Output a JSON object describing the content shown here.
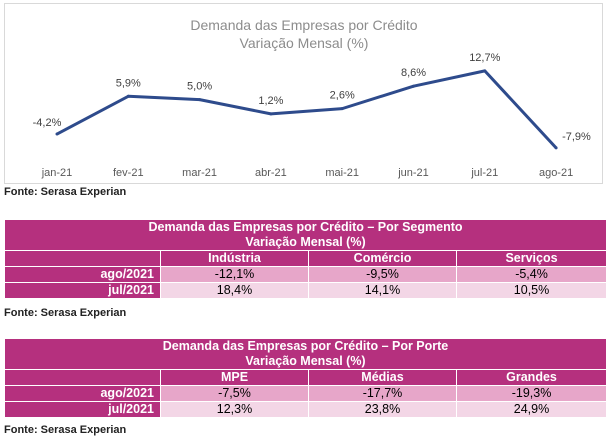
{
  "chart_data": {
    "type": "line",
    "title": "Demanda das Empresas por Crédito",
    "subtitle": "Variação Mensal (%)",
    "categories": [
      "jan-21",
      "fev-21",
      "mar-21",
      "abr-21",
      "mai-21",
      "jun-21",
      "jul-21",
      "ago-21"
    ],
    "values": [
      -4.2,
      5.9,
      5.0,
      1.2,
      2.6,
      8.6,
      12.7,
      -7.9
    ],
    "labels": [
      "-4,2%",
      "5,9%",
      "5,0%",
      "1,2%",
      "2,6%",
      "8,6%",
      "12,7%",
      "-7,9%"
    ],
    "ylim": [
      -9,
      14
    ],
    "color": "#2e4b8c",
    "grid": false
  },
  "source_label": "Fonte: Serasa Experian",
  "segment_table": {
    "title": "Demanda das Empresas por Crédito – Por Segmento",
    "subtitle": "Variação Mensal (%)",
    "columns": [
      "Indústria",
      "Comércio",
      "Serviços"
    ],
    "rows": [
      {
        "label": "ago/2021",
        "values": [
          "-12,1%",
          "-9,5%",
          "-5,4%"
        ]
      },
      {
        "label": "jul/2021",
        "values": [
          "18,4%",
          "14,1%",
          "10,5%"
        ]
      }
    ]
  },
  "size_table": {
    "title": "Demanda das Empresas por Crédito – Por Porte",
    "subtitle": "Variação Mensal (%)",
    "columns": [
      "MPE",
      "Médias",
      "Grandes"
    ],
    "rows": [
      {
        "label": "ago/2021",
        "values": [
          "-7,5%",
          "-17,7%",
          "-19,3%"
        ]
      },
      {
        "label": "jul/2021",
        "values": [
          "12,3%",
          "23,8%",
          "24,9%"
        ]
      }
    ]
  },
  "colors": {
    "header": "#b5307e",
    "cell_dark": "#e7a6c9",
    "cell_light": "#f3d6e6",
    "line": "#2e4b8c"
  }
}
